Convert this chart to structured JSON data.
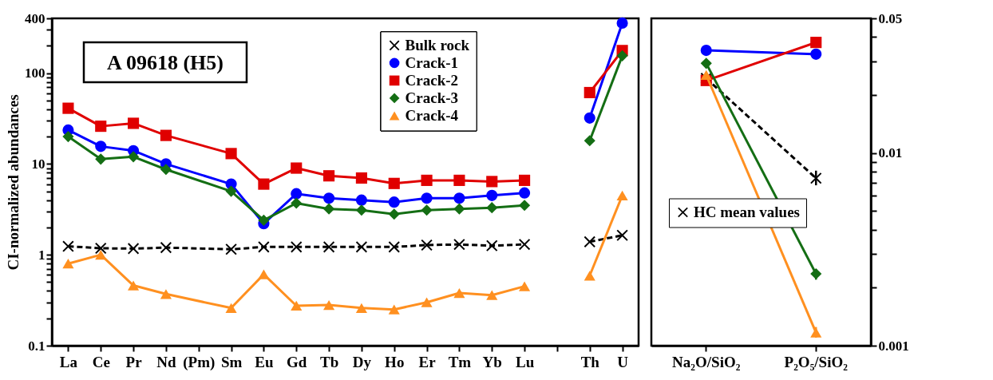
{
  "chart_data": [
    {
      "type": "line",
      "ylabel": "CI-normalized abundances",
      "annotations": [
        "A 09618 (H5)"
      ],
      "categories": [
        "La",
        "Ce",
        "Pr",
        "Nd",
        "(Pm)",
        "Sm",
        "Eu",
        "Gd",
        "Tb",
        "Dy",
        "Ho",
        "Er",
        "Tm",
        "Yb",
        "Lu",
        null,
        "Th",
        "U"
      ],
      "log": "y",
      "ylim": [
        0.1,
        400
      ],
      "yticks": [
        0.1,
        {
          "value": 0.2,
          "label": null
        },
        {
          "value": 0.3,
          "label": null
        },
        {
          "value": 0.4,
          "label": null
        },
        {
          "value": 0.5,
          "label": null
        },
        {
          "value": 0.6,
          "label": null
        },
        {
          "value": 0.7,
          "label": null
        },
        {
          "value": 0.8,
          "label": null
        },
        {
          "value": 0.9,
          "label": null
        },
        1,
        {
          "value": 2,
          "label": null
        },
        {
          "value": 3,
          "label": null
        },
        {
          "value": 4,
          "label": null
        },
        {
          "value": 5,
          "label": null
        },
        {
          "value": 6,
          "label": null
        },
        {
          "value": 7,
          "label": null
        },
        {
          "value": 8,
          "label": null
        },
        {
          "value": 9,
          "label": null
        },
        10,
        {
          "value": 20,
          "label": null
        },
        {
          "value": 30,
          "label": null
        },
        {
          "value": 40,
          "label": null
        },
        {
          "value": 50,
          "label": null
        },
        {
          "value": 60,
          "label": null
        },
        {
          "value": 70,
          "label": null
        },
        {
          "value": 80,
          "label": null
        },
        {
          "value": 90,
          "label": null
        },
        100,
        {
          "value": 200,
          "label": null
        },
        {
          "value": 300,
          "label": null
        },
        400
      ],
      "grid": false,
      "legend": "top right",
      "series": [
        {
          "name": "Bulk rock",
          "color": "#000000",
          "marker": "cross",
          "line_style": "dashed",
          "values": [
            1.24,
            1.18,
            1.17,
            1.2,
            null,
            1.15,
            1.22,
            1.22,
            1.22,
            1.22,
            1.22,
            1.28,
            1.3,
            1.26,
            1.3,
            null,
            1.39,
            1.64
          ]
        },
        {
          "name": "Crack-1",
          "color": "#0000ff",
          "marker": "circle",
          "line_style": "solid",
          "values": [
            23.6,
            15.6,
            14,
            10,
            null,
            6,
            2.2,
            4.7,
            4.2,
            4,
            3.8,
            4.2,
            4.2,
            4.5,
            4.8,
            null,
            32,
            355
          ]
        },
        {
          "name": "Crack-2",
          "color": "#e00000",
          "marker": "square",
          "line_style": "solid",
          "values": [
            41,
            26,
            28,
            20.6,
            null,
            13,
            6,
            9,
            7.4,
            7,
            6.1,
            6.6,
            6.6,
            6.4,
            6.6,
            null,
            61,
            177
          ]
        },
        {
          "name": "Crack-3",
          "color": "#146e14",
          "marker": "diamond",
          "line_style": "solid",
          "values": [
            20,
            11.3,
            12,
            8.7,
            null,
            5,
            2.4,
            3.7,
            3.2,
            3.1,
            2.8,
            3.1,
            3.2,
            3.3,
            3.5,
            null,
            18,
            155
          ]
        },
        {
          "name": "Crack-4",
          "color": "#ff9020",
          "marker": "triangle",
          "line_style": "solid",
          "values": [
            0.8,
            1,
            0.46,
            0.37,
            null,
            0.26,
            0.61,
            0.275,
            0.28,
            0.26,
            0.25,
            0.3,
            0.38,
            0.36,
            0.45,
            null,
            0.59,
            4.5
          ]
        }
      ]
    },
    {
      "type": "line",
      "categories": [
        "Na₂O/SiO₂",
        "P₂O₅/SiO₂"
      ],
      "log": "y",
      "ylim": [
        0.001,
        0.05
      ],
      "yticks": [
        0.001,
        {
          "value": 0.002,
          "label": null
        },
        {
          "value": 0.003,
          "label": null
        },
        {
          "value": 0.004,
          "label": null
        },
        {
          "value": 0.005,
          "label": null
        },
        {
          "value": 0.006,
          "label": null
        },
        {
          "value": 0.007,
          "label": null
        },
        {
          "value": 0.008,
          "label": null
        },
        {
          "value": 0.009,
          "label": null
        },
        0.01,
        {
          "value": 0.02,
          "label": null
        },
        {
          "value": 0.03,
          "label": null
        },
        {
          "value": 0.04,
          "label": null
        },
        0.05
      ],
      "grid": false,
      "legend": "left",
      "series": [
        {
          "name": "HC mean values",
          "color": "#000000",
          "marker": "cross",
          "line_style": "dashed",
          "values": [
            0.0244,
            0.0074
          ],
          "errors": [
            null,
            [
              0.0068,
              0.0081
            ]
          ]
        },
        {
          "color": "#0000ff",
          "marker": "circle",
          "line_style": "solid",
          "values": [
            0.0341,
            0.0326
          ],
          "errors": [
            null,
            [
              0.031,
              0.034
            ]
          ]
        },
        {
          "color": "#e00000",
          "marker": "square",
          "line_style": "solid",
          "values": [
            0.0238,
            0.0375
          ]
        },
        {
          "color": "#146e14",
          "marker": "diamond",
          "line_style": "solid",
          "values": [
            0.0292,
            0.00236
          ],
          "errors": [
            null,
            [
              0.0022,
              0.0025
            ]
          ]
        },
        {
          "color": "#ff9020",
          "marker": "triangle",
          "line_style": "solid",
          "values": [
            0.0254,
            0.00117
          ],
          "errors": [
            null,
            [
              0.0011,
              0.00125
            ]
          ]
        }
      ]
    }
  ]
}
